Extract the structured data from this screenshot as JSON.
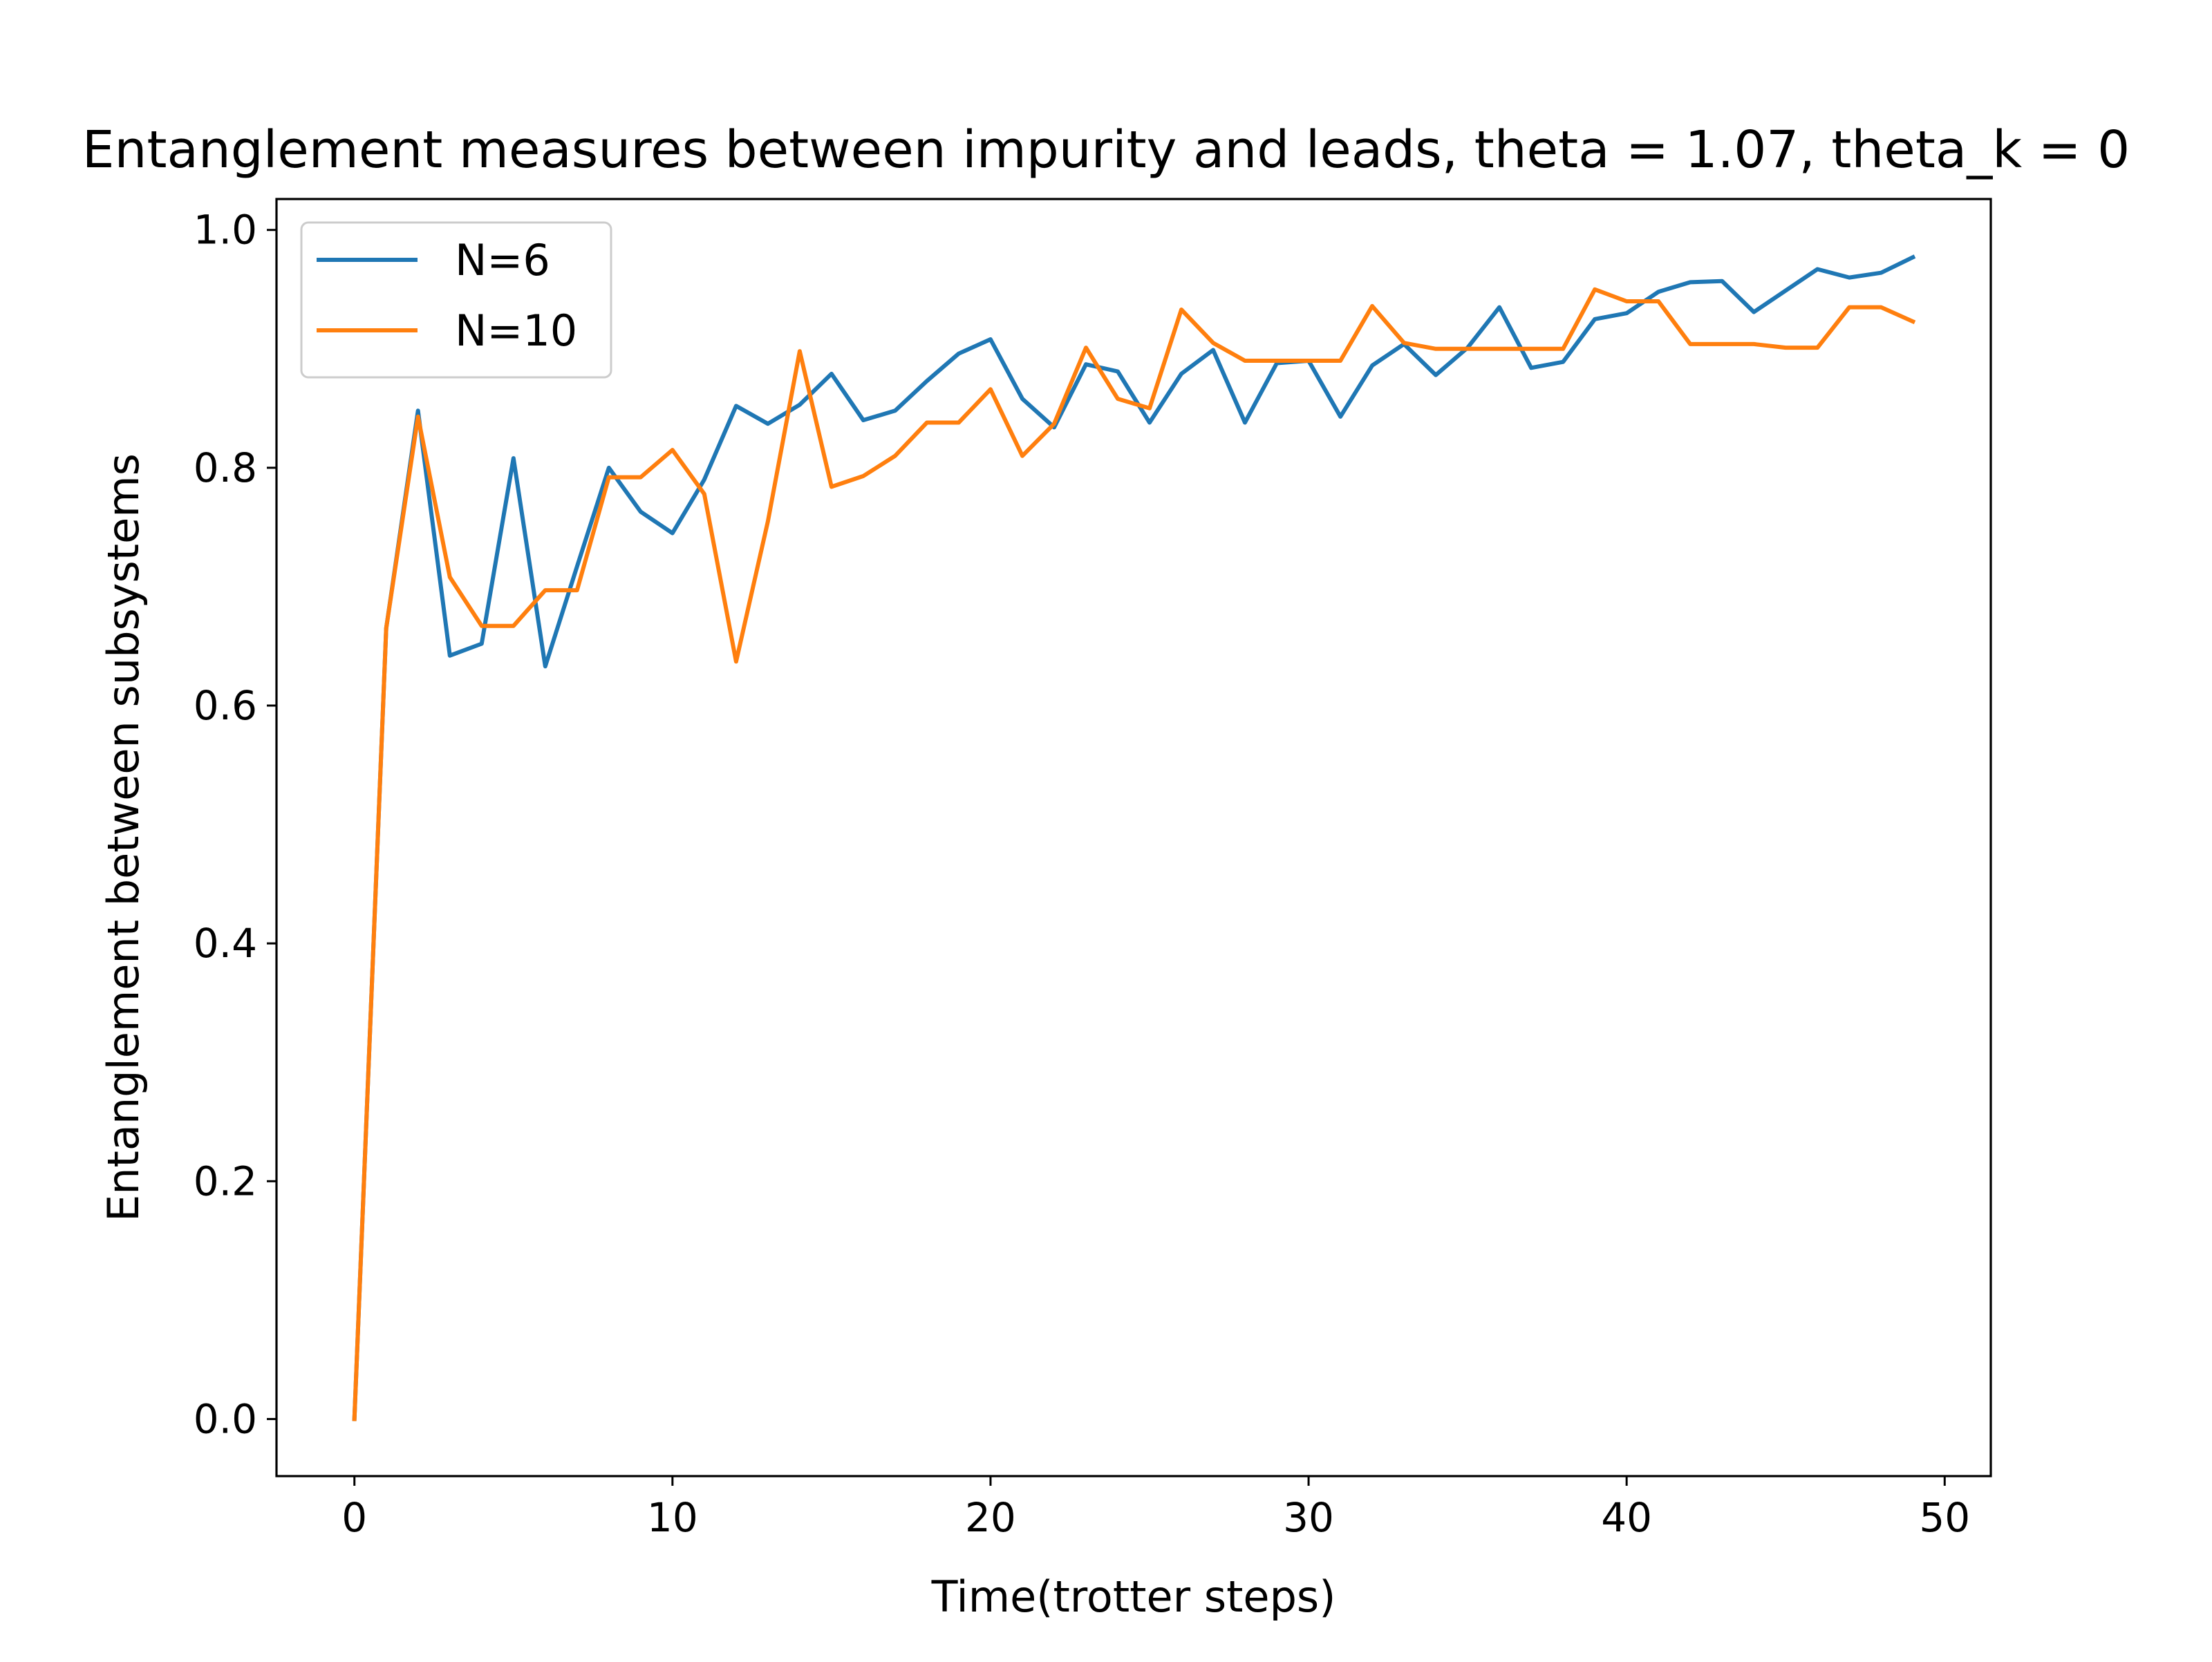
{
  "chart_data": {
    "type": "line",
    "title": "Entanglement measures between impurity and leads, theta = 1.07, theta_k = 0",
    "xlabel": "Time(trotter steps)",
    "ylabel": "Entanglement between subsystems",
    "xlim": [
      -2.45,
      51.45
    ],
    "ylim": [
      -0.048,
      1.026
    ],
    "x_ticks": [
      0,
      10,
      20,
      30,
      40,
      50
    ],
    "y_ticks": [
      0.0,
      0.2,
      0.4,
      0.6,
      0.8,
      1.0
    ],
    "x_tick_labels": [
      "0",
      "10",
      "20",
      "30",
      "40",
      "50"
    ],
    "y_tick_labels": [
      "0.0",
      "0.2",
      "0.4",
      "0.6",
      "0.8",
      "1.0"
    ],
    "grid": false,
    "legend_position": "top-left",
    "x": [
      0,
      1,
      2,
      3,
      4,
      5,
      6,
      7,
      8,
      9,
      10,
      11,
      12,
      13,
      14,
      15,
      16,
      17,
      18,
      19,
      20,
      21,
      22,
      23,
      24,
      25,
      26,
      27,
      28,
      29,
      30,
      31,
      32,
      33,
      34,
      35,
      36,
      37,
      38,
      39,
      40,
      41,
      42,
      43,
      44,
      45,
      46,
      47,
      48,
      49
    ],
    "series": [
      {
        "name": "N=6",
        "color": "#1f77b4",
        "values": [
          0.0,
          0.665,
          0.848,
          0.642,
          0.652,
          0.808,
          0.633,
          0.717,
          0.8,
          0.763,
          0.745,
          0.79,
          0.852,
          0.837,
          0.853,
          0.879,
          0.84,
          0.848,
          0.873,
          0.896,
          0.908,
          0.858,
          0.834,
          0.887,
          0.881,
          0.838,
          0.879,
          0.899,
          0.838,
          0.888,
          0.89,
          0.843,
          0.886,
          0.904,
          0.878,
          0.901,
          0.935,
          0.884,
          0.889,
          0.925,
          0.93,
          0.948,
          0.956,
          0.957,
          0.931,
          0.949,
          0.967,
          0.96,
          0.964,
          0.977
        ]
      },
      {
        "name": "N=10",
        "color": "#ff7f0e",
        "values": [
          0.0,
          0.665,
          0.843,
          0.708,
          0.667,
          0.667,
          0.697,
          0.697,
          0.792,
          0.792,
          0.815,
          0.778,
          0.637,
          0.755,
          0.898,
          0.784,
          0.793,
          0.81,
          0.838,
          0.838,
          0.866,
          0.81,
          0.837,
          0.901,
          0.858,
          0.85,
          0.933,
          0.905,
          0.89,
          0.89,
          0.89,
          0.89,
          0.936,
          0.905,
          0.9,
          0.9,
          0.9,
          0.9,
          0.9,
          0.95,
          0.94,
          0.94,
          0.904,
          0.904,
          0.904,
          0.901,
          0.901,
          0.935,
          0.935,
          0.923
        ]
      }
    ]
  }
}
